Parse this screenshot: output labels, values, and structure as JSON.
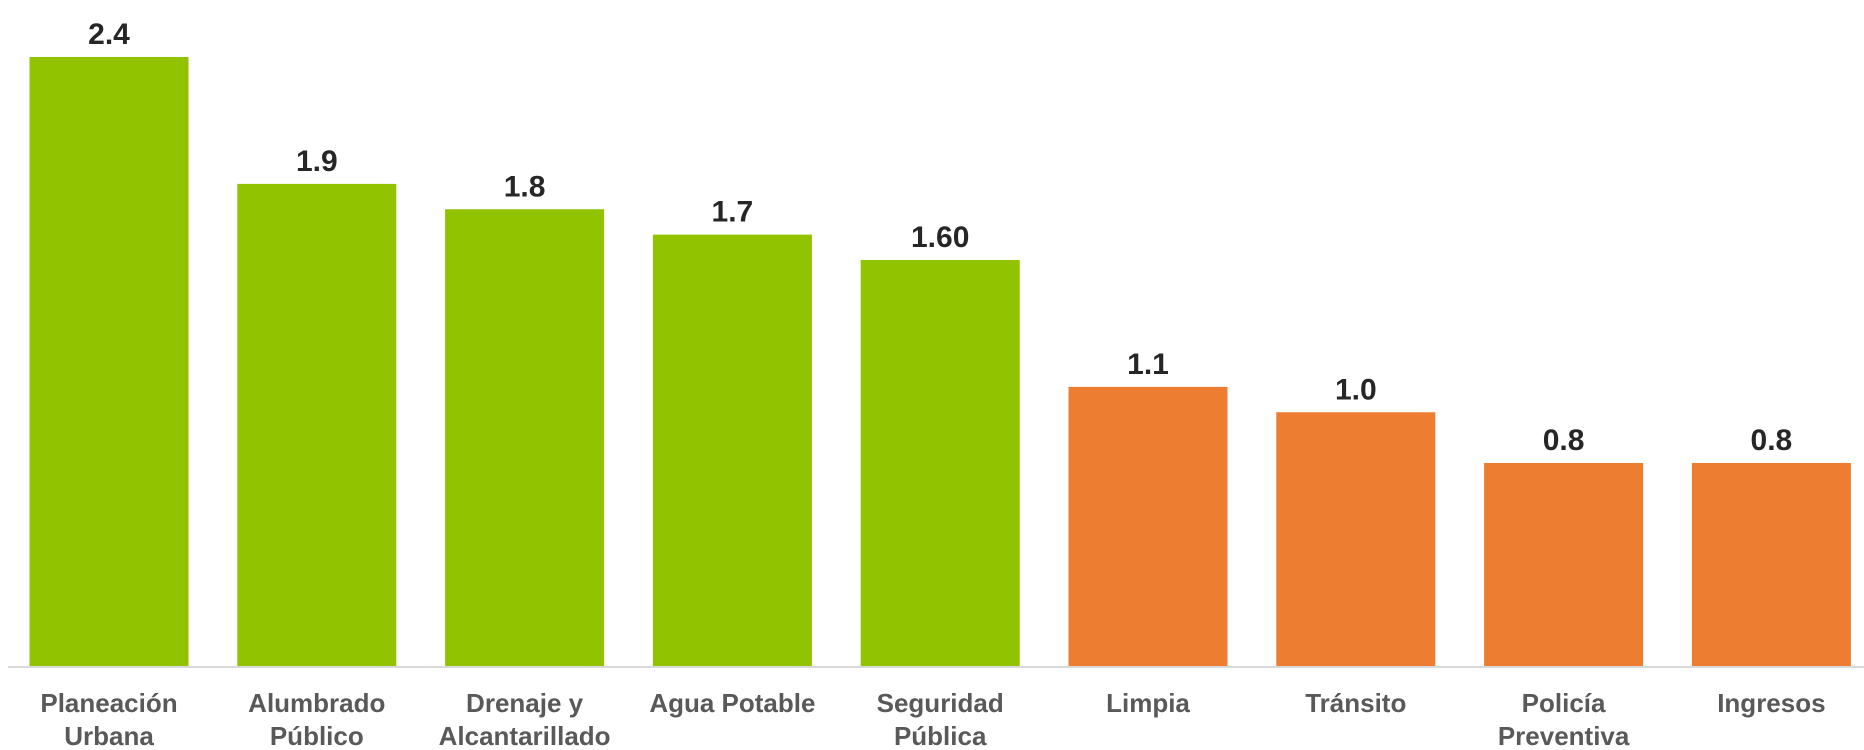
{
  "chart_data": {
    "type": "bar",
    "categories": [
      [
        "Planeación",
        "Urbana"
      ],
      [
        "Alumbrado",
        "Público"
      ],
      [
        "Drenaje y",
        "Alcantarillado"
      ],
      [
        "Agua Potable"
      ],
      [
        "Seguridad",
        "Pública"
      ],
      [
        "Limpia"
      ],
      [
        "Tránsito"
      ],
      [
        "Policía",
        "Preventiva"
      ],
      [
        "Ingresos"
      ]
    ],
    "values": [
      2.4,
      1.9,
      1.8,
      1.7,
      1.6,
      1.1,
      1.0,
      0.8,
      0.8
    ],
    "data_labels": [
      "2.4",
      "1.9",
      "1.8",
      "1.7",
      "1.60",
      "1.1",
      "1.0",
      "0.8",
      "0.8"
    ],
    "colors": [
      "#92C300",
      "#92C300",
      "#92C300",
      "#92C300",
      "#92C300",
      "#ED7D31",
      "#ED7D31",
      "#ED7D31",
      "#ED7D31"
    ],
    "ylim": [
      0,
      2.4
    ],
    "grid": false,
    "legend": "none"
  }
}
